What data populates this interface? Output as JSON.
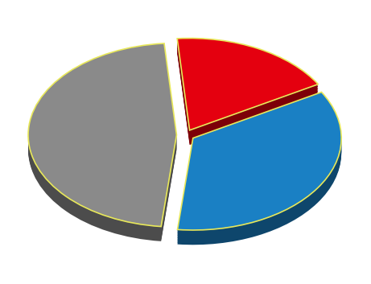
{
  "chart_data": {
    "type": "pie",
    "values": [
      18,
      47,
      35
    ],
    "colors": [
      "#e4000f",
      "#8a8a8a",
      "#1a80c4"
    ]
  }
}
